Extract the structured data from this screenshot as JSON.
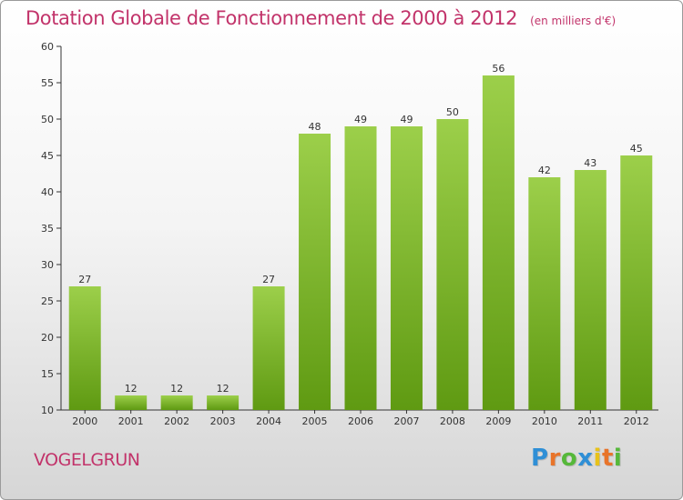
{
  "chart_data": {
    "type": "bar",
    "title": "Dotation Globale de Fonctionnement de 2000 à 2012",
    "unit_note": "(en milliers d'€)",
    "categories": [
      "2000",
      "2001",
      "2002",
      "2003",
      "2004",
      "2005",
      "2006",
      "2007",
      "2008",
      "2009",
      "2010",
      "2011",
      "2012"
    ],
    "values": [
      27,
      12,
      12,
      12,
      27,
      48,
      49,
      49,
      50,
      56,
      42,
      43,
      45
    ],
    "ylim": [
      10,
      60
    ],
    "yticks": [
      10,
      15,
      20,
      25,
      30,
      35,
      40,
      45,
      50,
      55,
      60
    ],
    "grid": false,
    "bar_color_light": "#9ccf4a",
    "bar_color_dark": "#5f9a12",
    "xlabel": "",
    "ylabel": ""
  },
  "commune": "VOGELGRUN",
  "brand": {
    "letters": [
      "P",
      "r",
      "o",
      "x",
      "i",
      "t",
      "i"
    ],
    "colors": [
      "#2f8fd6",
      "#e8742a",
      "#56b83a",
      "#2f8fd6",
      "#e8c21a",
      "#e8742a",
      "#56b83a"
    ]
  },
  "colors": {
    "title": "#c2336a",
    "axis": "#333333"
  }
}
